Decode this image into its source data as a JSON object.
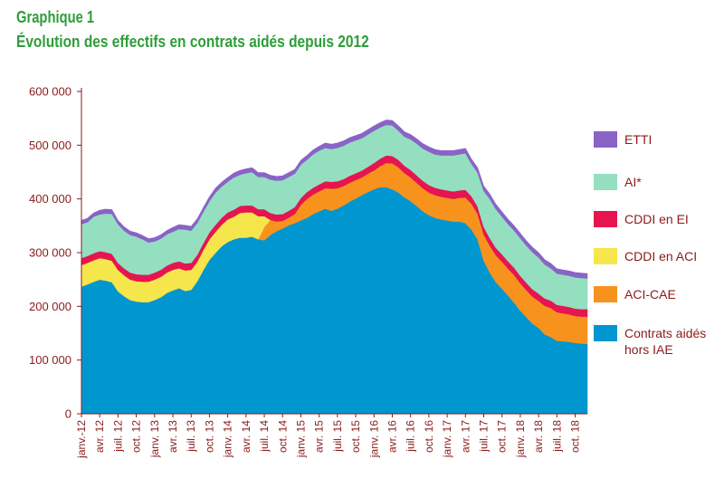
{
  "title": {
    "line1": "Graphique 1",
    "line2": "Évolution des effectifs en contrats aidés depuis 2012"
  },
  "footnote": "",
  "chart_data": {
    "type": "area",
    "stacked": true,
    "ylim": [
      0,
      600000
    ],
    "yticks": [
      "0",
      "100 000",
      "200 000",
      "300 000",
      "400 000",
      "500 000",
      "600 000"
    ],
    "ytick_values": [
      0,
      100000,
      200000,
      300000,
      400000,
      500000,
      600000
    ],
    "xticks": [
      "janv.-12",
      "avr. 12",
      "juil. 12",
      "oct. 12",
      "janv. 13",
      "avr. 13",
      "juil. 13",
      "oct. 13",
      "janv. 14",
      "avr. 14",
      "juil. 14",
      "oct. 14",
      "janv. 15",
      "avr. 15",
      "juil. 15",
      "oct. 15",
      "janv. 16",
      "avr. 16",
      "juil. 16",
      "oct. 16",
      "janv. 17",
      "avr. 17",
      "juil. 17",
      "oct. 17",
      "janv. 18",
      "avr. 18",
      "juil. 18",
      "oct. 18"
    ],
    "x_start": "2012-01",
    "x_end": "2018-12",
    "grid": false,
    "legend_position": "right",
    "series": [
      {
        "name": "Contrats aidés hors IAE",
        "legend_lines": [
          "Contrats aidés",
          "hors IAE"
        ],
        "color": "#0097d0",
        "values": [
          237000,
          241000,
          246000,
          250000,
          248000,
          245000,
          228000,
          219000,
          212000,
          209000,
          208000,
          208000,
          212000,
          217000,
          225000,
          230000,
          234000,
          229000,
          231000,
          247000,
          268000,
          287000,
          300000,
          312000,
          320000,
          325000,
          328000,
          328000,
          330000,
          325000,
          323000,
          333000,
          340000,
          345000,
          351000,
          355000,
          360000,
          365000,
          372000,
          377000,
          382000,
          378000,
          382000,
          388000,
          395000,
          401000,
          407000,
          413000,
          418000,
          422000,
          422000,
          418000,
          412000,
          403000,
          396000,
          387000,
          377000,
          370000,
          365000,
          362000,
          360000,
          358000,
          358000,
          355000,
          343000,
          325000,
          285000,
          263000,
          245000,
          233000,
          220000,
          207000,
          192000,
          180000,
          168000,
          160000,
          148000,
          143000,
          136000,
          135000,
          134000,
          132000,
          131000,
          130000
        ]
      },
      {
        "name": "ACI-CAE",
        "color": "#f7931d",
        "values": [
          0,
          0,
          0,
          0,
          0,
          0,
          0,
          0,
          0,
          0,
          0,
          0,
          0,
          0,
          0,
          0,
          0,
          0,
          0,
          0,
          0,
          0,
          0,
          0,
          0,
          0,
          0,
          0,
          0,
          0,
          25000,
          28000,
          18000,
          14000,
          14000,
          17000,
          29000,
          35000,
          36000,
          37000,
          38000,
          41000,
          38000,
          36000,
          35000,
          34000,
          33000,
          34000,
          35000,
          39000,
          45000,
          48000,
          47000,
          45000,
          44000,
          43000,
          43000,
          42000,
          42000,
          42000,
          42000,
          42000,
          44000,
          48000,
          48000,
          47000,
          49000,
          50000,
          50000,
          50000,
          50000,
          51000,
          51000,
          50000,
          50000,
          50000,
          53000,
          54000,
          53000,
          52000,
          51000,
          50000,
          50000,
          51000
        ]
      },
      {
        "name": "CDDI en ACI",
        "color": "#f5e64c",
        "values": [
          40000,
          40000,
          40000,
          40000,
          40000,
          40000,
          40000,
          39000,
          38000,
          38000,
          38000,
          38000,
          38000,
          38000,
          38000,
          38000,
          37000,
          38000,
          37000,
          36000,
          37000,
          38000,
          39000,
          40000,
          42000,
          42000,
          46000,
          47000,
          45000,
          43000,
          20000,
          0,
          0,
          0,
          0,
          0,
          0,
          0,
          0,
          0,
          0,
          0,
          0,
          0,
          0,
          0,
          0,
          0,
          0,
          0,
          0,
          0,
          0,
          0,
          0,
          0,
          0,
          0,
          0,
          0,
          0,
          0,
          0,
          0,
          0,
          0,
          0,
          0,
          0,
          0,
          0,
          0,
          0,
          0,
          0,
          0,
          0,
          0,
          0,
          0,
          0,
          0,
          0,
          0
        ]
      },
      {
        "name": "CDDI en EI",
        "color": "#e6154f",
        "values": [
          13000,
          13000,
          13000,
          13000,
          13000,
          13000,
          13000,
          13000,
          13000,
          13000,
          13000,
          13000,
          13000,
          13000,
          13000,
          13000,
          13000,
          13000,
          13000,
          13000,
          13000,
          13000,
          13000,
          13000,
          13000,
          13000,
          13000,
          13000,
          13000,
          13000,
          13000,
          13000,
          13000,
          13000,
          13000,
          13000,
          13000,
          13000,
          13000,
          13000,
          13000,
          13000,
          13000,
          13000,
          13000,
          13000,
          13000,
          13000,
          14000,
          14000,
          14000,
          14000,
          14000,
          14000,
          14000,
          14000,
          14000,
          14000,
          14000,
          14000,
          14000,
          14000,
          14000,
          14000,
          14000,
          14000,
          14000,
          14000,
          14000,
          14000,
          14000,
          14000,
          14000,
          14000,
          14000,
          14000,
          14000,
          14000,
          14000,
          14000,
          14000,
          14000,
          14000,
          14000
        ]
      },
      {
        "name": "AI*",
        "color": "#93dfc0",
        "values": [
          63000,
          63000,
          68000,
          68000,
          72000,
          74000,
          72000,
          70000,
          70000,
          70000,
          66000,
          60000,
          58000,
          58000,
          58000,
          58000,
          60000,
          63000,
          60000,
          59000,
          58000,
          58000,
          60000,
          58000,
          57000,
          60000,
          58000,
          60000,
          62000,
          60000,
          60000,
          62000,
          63000,
          63000,
          63000,
          62000,
          62000,
          60000,
          62000,
          63000,
          62000,
          61000,
          62000,
          62000,
          62000,
          61000,
          60000,
          60000,
          60000,
          58000,
          57000,
          57000,
          54000,
          54000,
          57000,
          59000,
          60000,
          62000,
          62000,
          63000,
          65000,
          67000,
          67000,
          68000,
          60000,
          63000,
          67000,
          73000,
          72000,
          70000,
          69000,
          69000,
          70000,
          69000,
          69000,
          67000,
          63000,
          60000,
          58000,
          58000,
          58000,
          58000,
          58000,
          57000
        ]
      },
      {
        "name": "ETTI",
        "color": "#8a63c7",
        "values": [
          7000,
          7000,
          7000,
          8000,
          8000,
          8000,
          7000,
          7000,
          7000,
          7000,
          7000,
          7000,
          7000,
          7000,
          7000,
          8000,
          8000,
          8000,
          8000,
          8000,
          8000,
          8000,
          8000,
          8000,
          8000,
          8000,
          8000,
          8000,
          8000,
          8000,
          8000,
          8000,
          8000,
          8000,
          8000,
          8000,
          8000,
          8000,
          8000,
          8000,
          9000,
          9000,
          9000,
          9000,
          9000,
          9000,
          9000,
          9000,
          9000,
          9000,
          9000,
          9000,
          9000,
          9000,
          9000,
          9000,
          9000,
          9000,
          9000,
          9000,
          9000,
          9000,
          9000,
          9000,
          9000,
          9000,
          9000,
          9000,
          9000,
          9000,
          9000,
          9000,
          9000,
          9000,
          9000,
          9000,
          9000,
          9000,
          9000,
          9000,
          9000,
          9000,
          9000,
          9000
        ]
      }
    ],
    "legend_order": [
      "ETTI",
      "AI*",
      "CDDI en EI",
      "CDDI en ACI",
      "ACI-CAE",
      "Contrats aidés hors IAE"
    ]
  }
}
